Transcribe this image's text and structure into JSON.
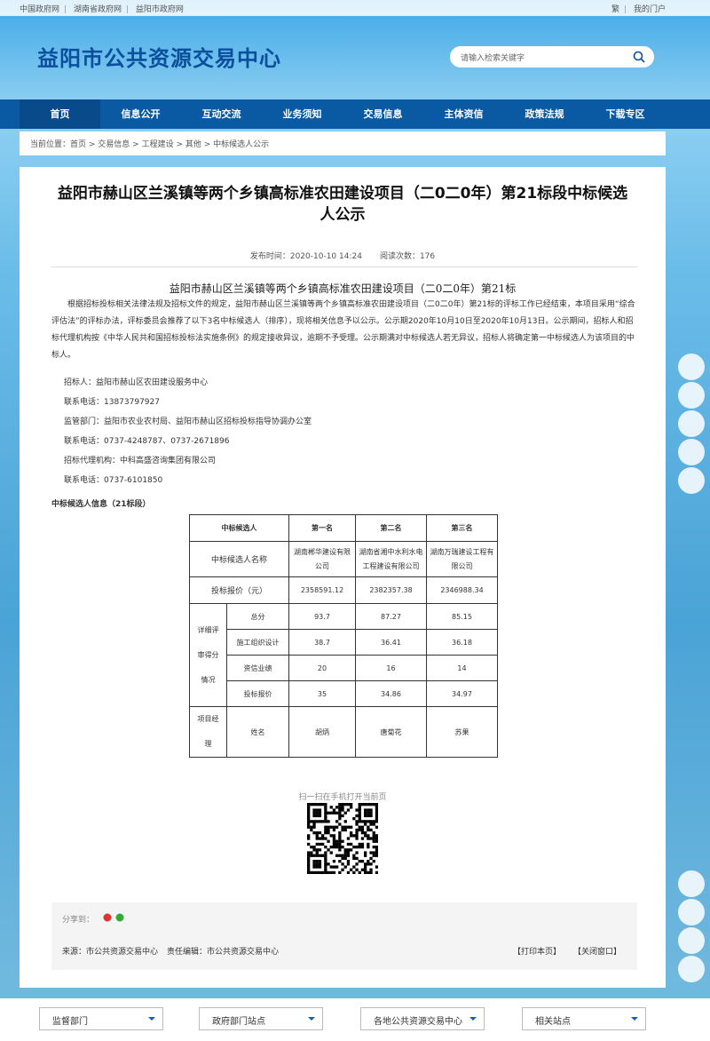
{
  "topbar": {
    "links": [
      "中国政府网",
      "湖南省政府网",
      "益阳市政府网"
    ],
    "right": [
      "繁",
      "我的门户"
    ]
  },
  "header": {
    "title": "益阳市公共资源交易中心",
    "search_placeholder": "请输入检索关键字"
  },
  "nav": [
    "首页",
    "信息公开",
    "互动交流",
    "业务须知",
    "交易信息",
    "主体资信",
    "政策法规",
    "下载专区"
  ],
  "breadcrumb": {
    "label": "当前位置：",
    "items": [
      "首页",
      "交易信息",
      "工程建设",
      "其他",
      "中标候选人公示"
    ]
  },
  "article": {
    "title": "益阳市赫山区兰溪镇等两个乡镇高标准农田建设项目（二0二0年）第21标段中标候选人公示",
    "publish_time": "发布时间：2020-10-10 14:24",
    "views": "阅读次数：176",
    "subtitle": "益阳市赫山区兰溪镇等两个乡镇高标准农田建设项目（二0二0年）第21标",
    "paragraph": "根据招标投标相关法律法规及招标文件的规定，益阳市赫山区兰溪镇等两个乡镇高标准农田建设项目（二0二0年）第21标的评标工作已经结束，本项目采用“综合评估法”的评标办法，评标委员会推荐了以下3名中标候选人（排序），现将相关信息予以公示。公示期2020年10月10日至2020年10月13日。公示期间，招标人和招标代理机构按《中华人民共和国招标投标法实施条例》的规定接收异议，逾期不予受理。公示期满对中标候选人若无异议，招标人将确定第一中标候选人为该项目的中标人。",
    "contacts": [
      "招标人：益阳市赫山区农田建设服务中心",
      "联系电话：13873797927",
      "监管部门：益阳市农业农村局、益阳市赫山区招标投标指导协调办公室",
      "联系电话：0737-4248787、0737-2671896",
      "招标代理机构：中科高盛咨询集团有限公司",
      "联系电话：0737-6101850"
    ],
    "table_caption": "中标候选人信息（21标段）",
    "table": {
      "header": [
        "中标候选人",
        "第一名",
        "第二名",
        "第三名"
      ],
      "name_row": {
        "label": "中标候选人名称",
        "values": [
          "湖南郴华建设有限公司",
          "湖南省湘中水利水电工程建设有限公司",
          "湖南万瑞建设工程有限公司"
        ]
      },
      "price_row": {
        "label": "投标报价（元）",
        "values": [
          "2358591.12",
          "2382357.38",
          "2346988.34"
        ]
      },
      "detail_group": "详细评审得分情况",
      "detail_rows": [
        {
          "label": "总分",
          "values": [
            "93.7",
            "87.27",
            "85.15"
          ]
        },
        {
          "label": "施工组织设计",
          "values": [
            "38.7",
            "36.41",
            "36.18"
          ]
        },
        {
          "label": "资信业绩",
          "values": [
            "20",
            "16",
            "14"
          ]
        },
        {
          "label": "投标报价",
          "values": [
            "35",
            "34.86",
            "34.97"
          ]
        }
      ],
      "manager_group": "项目经理",
      "manager_row": {
        "label": "姓名",
        "values": [
          "胡炳",
          "唐菊花",
          "苏果"
        ]
      }
    },
    "qr_caption": "扫一扫在手机打开当前页",
    "share": "分享到：",
    "source": "来源：市公共资源交易中心",
    "editor": "责任编辑：市公共资源交易中心",
    "print": "【打印本页】",
    "close": "【关闭窗口】"
  },
  "footer": [
    "监督部门",
    "政府部门站点",
    "各地公共资源交易中心",
    "相关站点"
  ]
}
